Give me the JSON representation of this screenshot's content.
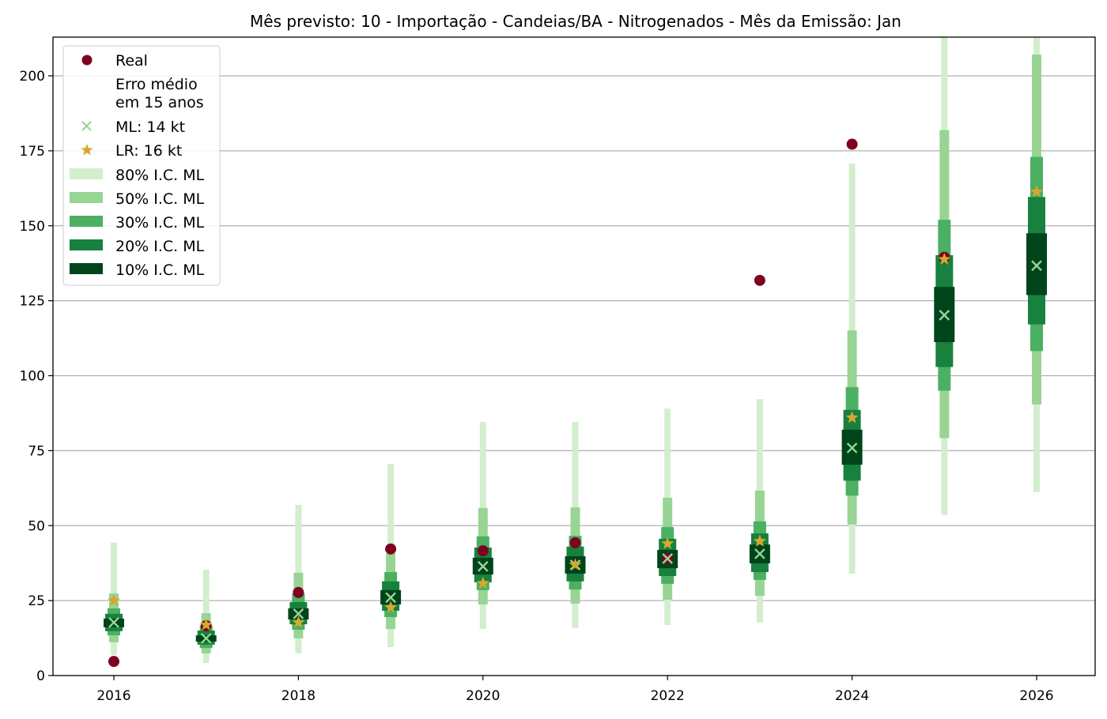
{
  "chart_data": {
    "type": "interval-scatter",
    "title": "Mês previsto: 10 - Importação - Candeias/BA - Nitrogenados - Mês da Emissão: Jan",
    "xlabel": "",
    "ylabel": "",
    "xlim": [
      2015.35,
      2026.65
    ],
    "ylim": [
      0,
      213
    ],
    "grid": "y",
    "x_ticks": [
      "2016",
      "2018",
      "2020",
      "2022",
      "2024",
      "2026"
    ],
    "x_tick_values": [
      2016,
      2018,
      2020,
      2022,
      2024,
      2026
    ],
    "y_ticks": [
      "0",
      "25",
      "50",
      "75",
      "100",
      "125",
      "150",
      "175",
      "200"
    ],
    "y_tick_values": [
      0,
      25,
      50,
      75,
      100,
      125,
      150,
      175,
      200
    ],
    "legend_placement": "top-left",
    "legend": {
      "real": "Real",
      "erro_line1": "Erro médio",
      "erro_line2": "em 15 anos",
      "ml": "ML: 14 kt",
      "lr": "LR: 16 kt",
      "ci80": "80% I.C. ML",
      "ci50": "50% I.C. ML",
      "ci30": "30% I.C. ML",
      "ci20": "20% I.C. ML",
      "ci10": "10% I.C. ML"
    },
    "colors": {
      "real": "#7f0020",
      "ml": "#98d594",
      "lr": "#d4a92c",
      "ci80": "#d3eecd",
      "ci50": "#98d494",
      "ci30": "#4bb062",
      "ci20": "#17813d",
      "ci10": "#00441b"
    },
    "x": [
      2016,
      2017,
      2018,
      2019,
      2020,
      2021,
      2022,
      2023,
      2024,
      2025,
      2026
    ],
    "real": [
      4.7,
      16.6,
      27.7,
      42.2,
      41.6,
      44.3,
      39.0,
      131.8,
      177.2,
      139.5,
      null
    ],
    "ml": [
      17.7,
      12.4,
      20.6,
      26.0,
      36.4,
      36.9,
      39.0,
      40.6,
      75.9,
      120.2,
      136.7
    ],
    "lr": [
      25.0,
      16.9,
      17.7,
      22.7,
      30.8,
      36.9,
      44.0,
      44.8,
      86.0,
      138.8,
      161.3
    ],
    "intervals": {
      "ci80": [
        [
          6.9,
          44.3
        ],
        [
          4.2,
          35.3
        ],
        [
          7.4,
          56.9
        ],
        [
          9.5,
          70.6
        ],
        [
          15.5,
          84.6
        ],
        [
          15.8,
          84.6
        ],
        [
          16.9,
          89.0
        ],
        [
          17.7,
          92.2
        ],
        [
          34.0,
          170.8
        ],
        [
          53.6,
          230.0
        ],
        [
          61.2,
          250.0
        ]
      ],
      "ci50": [
        [
          11.1,
          27.4
        ],
        [
          7.4,
          20.8
        ],
        [
          12.4,
          34.3
        ],
        [
          15.5,
          40.8
        ],
        [
          23.7,
          55.9
        ],
        [
          24.0,
          56.1
        ],
        [
          25.3,
          59.3
        ],
        [
          26.6,
          61.7
        ],
        [
          50.4,
          115.1
        ],
        [
          79.2,
          181.9
        ],
        [
          90.4,
          207.1
        ]
      ],
      "ci30": [
        [
          13.4,
          22.4
        ],
        [
          9.2,
          16.6
        ],
        [
          15.3,
          27.4
        ],
        [
          19.5,
          34.5
        ],
        [
          28.5,
          46.4
        ],
        [
          28.7,
          46.6
        ],
        [
          30.6,
          49.5
        ],
        [
          31.9,
          51.4
        ],
        [
          60.0,
          96.2
        ],
        [
          95.0,
          152.0
        ],
        [
          108.2,
          173.0
        ]
      ],
      "ci20": [
        [
          14.8,
          20.6
        ],
        [
          10.3,
          15.0
        ],
        [
          17.1,
          24.5
        ],
        [
          21.6,
          31.4
        ],
        [
          31.1,
          42.7
        ],
        [
          31.4,
          43.0
        ],
        [
          33.2,
          45.6
        ],
        [
          34.5,
          47.4
        ],
        [
          65.0,
          88.6
        ],
        [
          102.9,
          140.2
        ],
        [
          117.1,
          159.6
        ]
      ],
      "ci10": [
        [
          16.1,
          19.0
        ],
        [
          11.3,
          13.4
        ],
        [
          18.7,
          22.4
        ],
        [
          23.7,
          28.5
        ],
        [
          33.7,
          39.3
        ],
        [
          34.0,
          39.8
        ],
        [
          35.8,
          41.9
        ],
        [
          37.4,
          43.7
        ],
        [
          70.3,
          82.0
        ],
        [
          111.2,
          129.6
        ],
        [
          126.9,
          147.5
        ]
      ]
    }
  }
}
